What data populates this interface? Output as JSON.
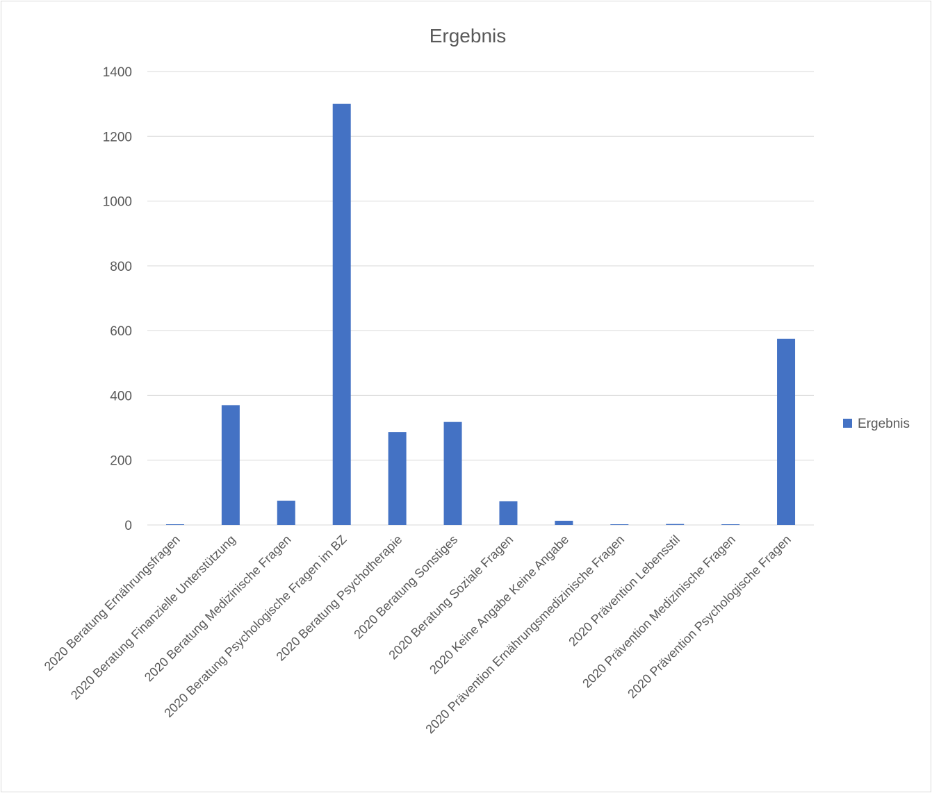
{
  "chart_data": {
    "type": "bar",
    "title": "Ergebnis",
    "xlabel": "",
    "ylabel": "",
    "ylim": [
      0,
      1400
    ],
    "yticks": [
      0,
      200,
      400,
      600,
      800,
      1000,
      1200,
      1400
    ],
    "grid": true,
    "legend_position": "right",
    "categories": [
      "2020 Beratung Ernährungsfragen",
      "2020 Beratung Finanzielle Unterstützung",
      "2020 Beratung Medizinische Fragen",
      "2020 Beratung Psychologische Fragen im BZ",
      "2020 Beratung Psychotherapie",
      "2020 Beratung Sonstiges",
      "2020 Beratung Soziale Fragen",
      "2020 Keine Angabe Keine Angabe",
      "2020 Prävention Ernährungsmedizinische Fragen",
      "2020 Prävention Lebensstil",
      "2020 Prävention Medizinische Fragen",
      "2020 Prävention Psychologische Fragen"
    ],
    "series": [
      {
        "name": "Ergebnis",
        "color": "#4472c4",
        "values": [
          1,
          370,
          75,
          1300,
          287,
          318,
          73,
          13,
          1,
          3,
          1,
          575
        ]
      }
    ]
  }
}
